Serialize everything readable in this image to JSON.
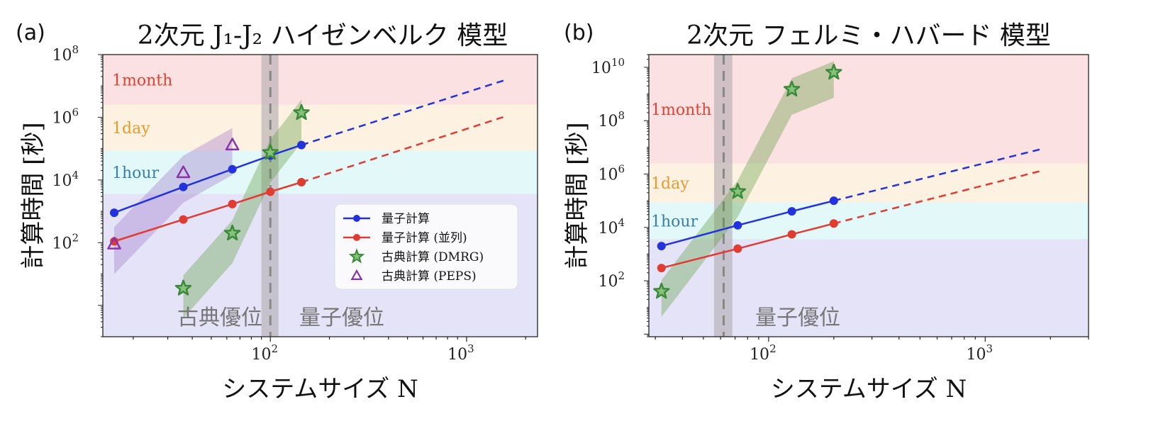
{
  "chart_data": [
    {
      "type": "line",
      "panel_label": "(a)",
      "title": "2次元 J₁-J₂ ハイゼンベルク 模型",
      "xlabel": "システムサイズ N",
      "ylabel": "計算時間 [秒]",
      "xscale": "log",
      "yscale": "log",
      "xlim": [
        14,
        2300
      ],
      "ylim": [
        0.1,
        100000000
      ],
      "xticks": [
        {
          "value": 100,
          "label": "10",
          "exp": "2"
        },
        {
          "value": 1000,
          "label": "10",
          "exp": "3"
        }
      ],
      "yticks": [
        {
          "value": 100,
          "label": "10",
          "exp": "2"
        },
        {
          "value": 10000,
          "label": "10",
          "exp": "4"
        },
        {
          "value": 1000000,
          "label": "10",
          "exp": "6"
        },
        {
          "value": 100000000,
          "label": "10",
          "exp": "8"
        }
      ],
      "bands": [
        {
          "label": "1month",
          "from": 2500000,
          "to": 100000000,
          "color": "#fbe1e1",
          "text_color": "#dd4433"
        },
        {
          "label": "1day",
          "from": 86400,
          "to": 2500000,
          "color": "#fdf1e2",
          "text_color": "#e89a2a"
        },
        {
          "label": "1hour",
          "from": 3600,
          "to": 86400,
          "color": "#e3f8f8",
          "text_color": "#3a7fa8"
        },
        {
          "label": "",
          "from": 0.1,
          "to": 3600,
          "color": "#e4e3f8",
          "text_color": "#555"
        }
      ],
      "crossover": {
        "x": 100,
        "width_from": 90,
        "width_to": 110
      },
      "advantage_labels": [
        "古典優位",
        "量子優位"
      ],
      "series": [
        {
          "name": "量子計算",
          "kind": "line",
          "color": "#2233dd",
          "x": [
            16,
            36,
            64,
            100,
            144
          ],
          "y": [
            900,
            6000,
            22000,
            60000,
            130000
          ],
          "extrapolation": {
            "x": [
              144,
              1600
            ],
            "y": [
              130000,
              16000000
            ]
          }
        },
        {
          "name": "量子計算 (並列)",
          "kind": "line",
          "color": "#e03c31",
          "x": [
            16,
            36,
            64,
            100,
            144
          ],
          "y": [
            110,
            550,
            1700,
            4200,
            8500
          ],
          "extrapolation": {
            "x": [
              144,
              1600
            ],
            "y": [
              8500,
              1100000
            ]
          }
        },
        {
          "name": "古典計算 (DMRG)",
          "kind": "star",
          "color": "#3a8a3a",
          "x": [
            36,
            64,
            100,
            144
          ],
          "y": [
            3.5,
            200,
            75000,
            1400000
          ],
          "band_color": "#5a9a3a"
        },
        {
          "name": "古典計算 (PEPS)",
          "kind": "triangle",
          "color": "#8833aa",
          "x": [
            16,
            36,
            64
          ],
          "y": [
            90,
            17000,
            130000
          ],
          "band_color": "#9a70c8"
        }
      ]
    },
    {
      "type": "line",
      "panel_label": "(b)",
      "title": "2次元 フェルミ・ハバード 模型",
      "xlabel": "システムサイズ N",
      "ylabel": "計算時間 [秒]",
      "xscale": "log",
      "yscale": "log",
      "xlim": [
        28,
        3000
      ],
      "ylim": [
        0.8,
        30000000000
      ],
      "xticks": [
        {
          "value": 100,
          "label": "10",
          "exp": "2"
        },
        {
          "value": 1000,
          "label": "10",
          "exp": "3"
        }
      ],
      "yticks": [
        {
          "value": 100,
          "label": "10",
          "exp": "2"
        },
        {
          "value": 10000,
          "label": "10",
          "exp": "4"
        },
        {
          "value": 1000000,
          "label": "10",
          "exp": "6"
        },
        {
          "value": 100000000,
          "label": "10",
          "exp": "8"
        },
        {
          "value": 10000000000,
          "label": "10",
          "exp": "10"
        }
      ],
      "bands": [
        {
          "label": "1month",
          "from": 2500000,
          "to": 30000000000,
          "color": "#fbe1e1",
          "text_color": "#dd4433"
        },
        {
          "label": "1day",
          "from": 86400,
          "to": 2500000,
          "color": "#fdf1e2",
          "text_color": "#e89a2a"
        },
        {
          "label": "1hour",
          "from": 3600,
          "to": 86400,
          "color": "#e3f8f8",
          "text_color": "#3a7fa8"
        },
        {
          "label": "",
          "from": 0.8,
          "to": 3600,
          "color": "#e4e3f8",
          "text_color": "#555"
        }
      ],
      "crossover": {
        "x": 62,
        "width_from": 56,
        "width_to": 68
      },
      "advantage_labels": [
        "",
        "量子優位"
      ],
      "series": [
        {
          "name": "量子計算",
          "kind": "line",
          "color": "#2233dd",
          "x": [
            32,
            72,
            128,
            200
          ],
          "y": [
            2000,
            12000,
            40000,
            100000
          ],
          "extrapolation": {
            "x": [
              200,
              1800
            ],
            "y": [
              100000,
              8500000
            ]
          }
        },
        {
          "name": "量子計算 (並列)",
          "kind": "line",
          "color": "#e03c31",
          "x": [
            32,
            72,
            128,
            200
          ],
          "y": [
            300,
            1600,
            5500,
            14000
          ],
          "extrapolation": {
            "x": [
              200,
              1800
            ],
            "y": [
              14000,
              1300000
            ]
          }
        },
        {
          "name": "古典計算 (DMRG)",
          "kind": "star",
          "color": "#3a8a3a",
          "x": [
            32,
            72,
            128,
            200
          ],
          "y": [
            40,
            220000,
            1500000000,
            6500000000
          ],
          "band_color": "#5a9a3a"
        }
      ]
    }
  ],
  "legend": {
    "items": [
      {
        "label": "量子計算",
        "kind": "line",
        "color": "#2233dd"
      },
      {
        "label": "量子計算 (並列)",
        "kind": "line",
        "color": "#e03c31"
      },
      {
        "label": "古典計算 (DMRG)",
        "kind": "star",
        "color": "#3a8a3a"
      },
      {
        "label": "古典計算 (PEPS)",
        "kind": "triangle",
        "color": "#8833aa"
      }
    ]
  }
}
